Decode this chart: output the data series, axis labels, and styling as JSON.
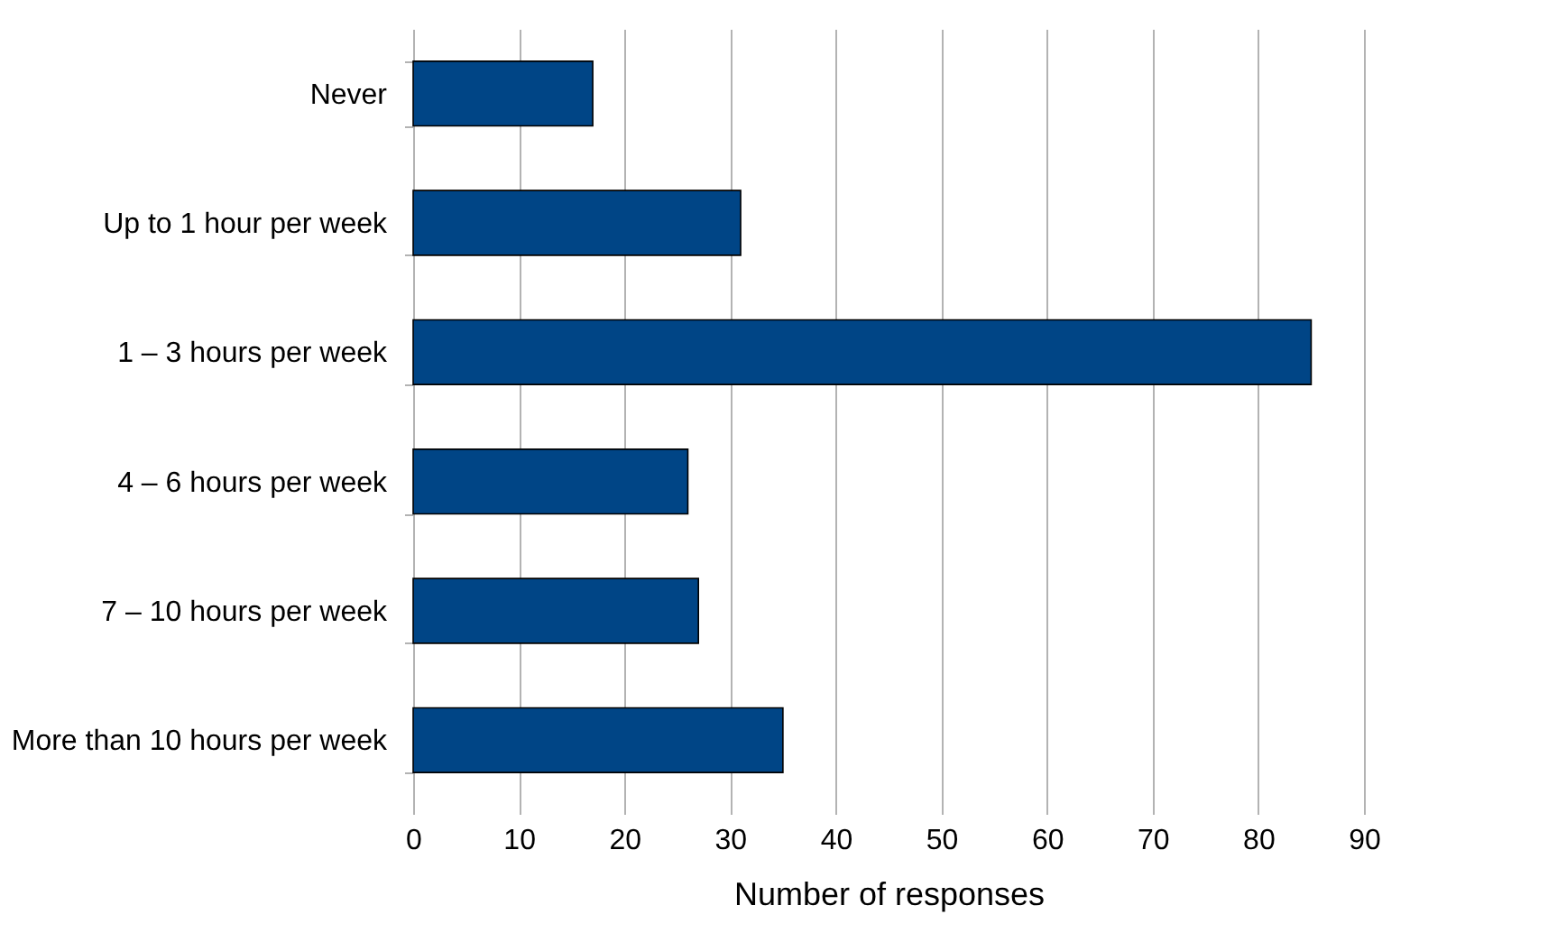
{
  "chart_data": {
    "type": "bar",
    "orientation": "horizontal",
    "xlabel": "Number of responses",
    "categories": [
      "Never",
      "Up to 1 hour per week",
      "1 – 3 hours per week",
      "4 – 6 hours per week",
      "7 – 10 hours per week",
      "More than 10 hours per week"
    ],
    "values": [
      17,
      31,
      85,
      26,
      27,
      35
    ],
    "color": "#004586",
    "xlim": [
      0,
      90
    ],
    "xticks": [
      0,
      10,
      20,
      30,
      40,
      50,
      60,
      70,
      80,
      90
    ],
    "grid": "x"
  }
}
